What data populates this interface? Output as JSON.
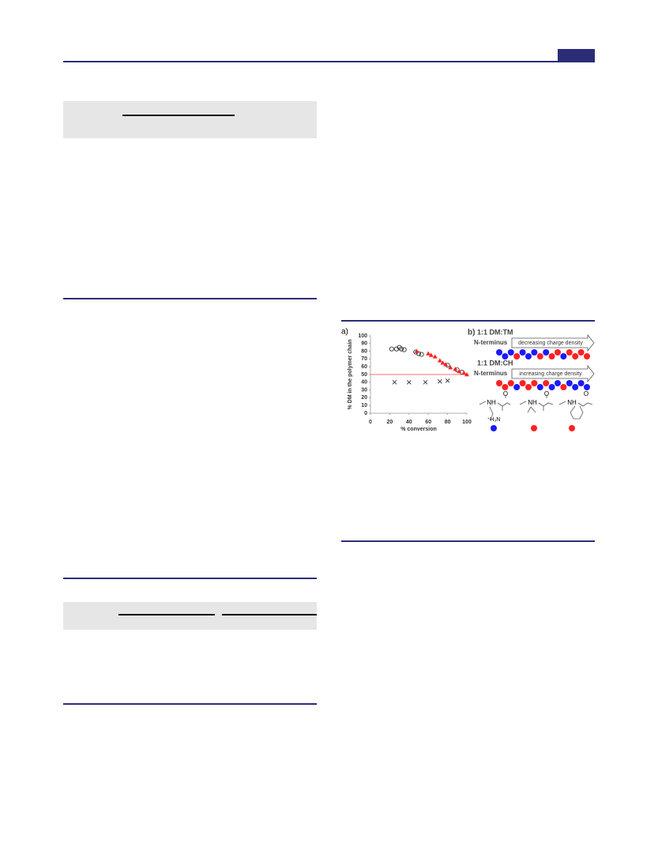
{
  "chart_data": {
    "type": "scatter",
    "y_label": "% DM in the polymer chain",
    "x_label": "% conversion",
    "xlim": [
      0,
      100
    ],
    "xticks": [
      0,
      20,
      40,
      60,
      80,
      100
    ],
    "ylim": [
      0,
      100
    ],
    "yticks": [
      0,
      10,
      20,
      30,
      40,
      50,
      60,
      70,
      80,
      90,
      100
    ],
    "hline": 50,
    "hline_color": "#ff4040",
    "series": [
      {
        "marker": "circle",
        "color": "#333333",
        "x": [
          22,
          27,
          30,
          32,
          35,
          47,
          50,
          53,
          80,
          90,
          95
        ],
        "values": [
          83,
          83,
          85,
          83,
          82,
          79,
          77,
          76,
          62,
          56,
          53
        ]
      },
      {
        "marker": "triangle",
        "color": "#ff2020",
        "x": [
          48,
          60,
          63,
          67,
          72,
          75,
          78,
          83,
          88,
          92,
          97,
          100
        ],
        "values": [
          80,
          77,
          75,
          73,
          68,
          65,
          63,
          59,
          57,
          54,
          52,
          50
        ]
      },
      {
        "marker": "cross",
        "color": "#333333",
        "x": [
          25,
          40,
          57,
          72,
          80
        ],
        "values": [
          40,
          40,
          40,
          41,
          42
        ]
      }
    ]
  },
  "figure": {
    "panel_a_label": "a)",
    "panel_b_label": "b)",
    "chain_1": {
      "title": "1:1 DM:TM",
      "terminus": "N-terminus",
      "arrow": "decreasing charge density"
    },
    "chain_2": {
      "title": "1:1 DM:CH",
      "terminus": "N-terminus",
      "arrow": "increasing charge density"
    },
    "structures": {
      "amine": "NH",
      "carbonyl": "O",
      "ammonium": "⁺H₃N"
    }
  }
}
